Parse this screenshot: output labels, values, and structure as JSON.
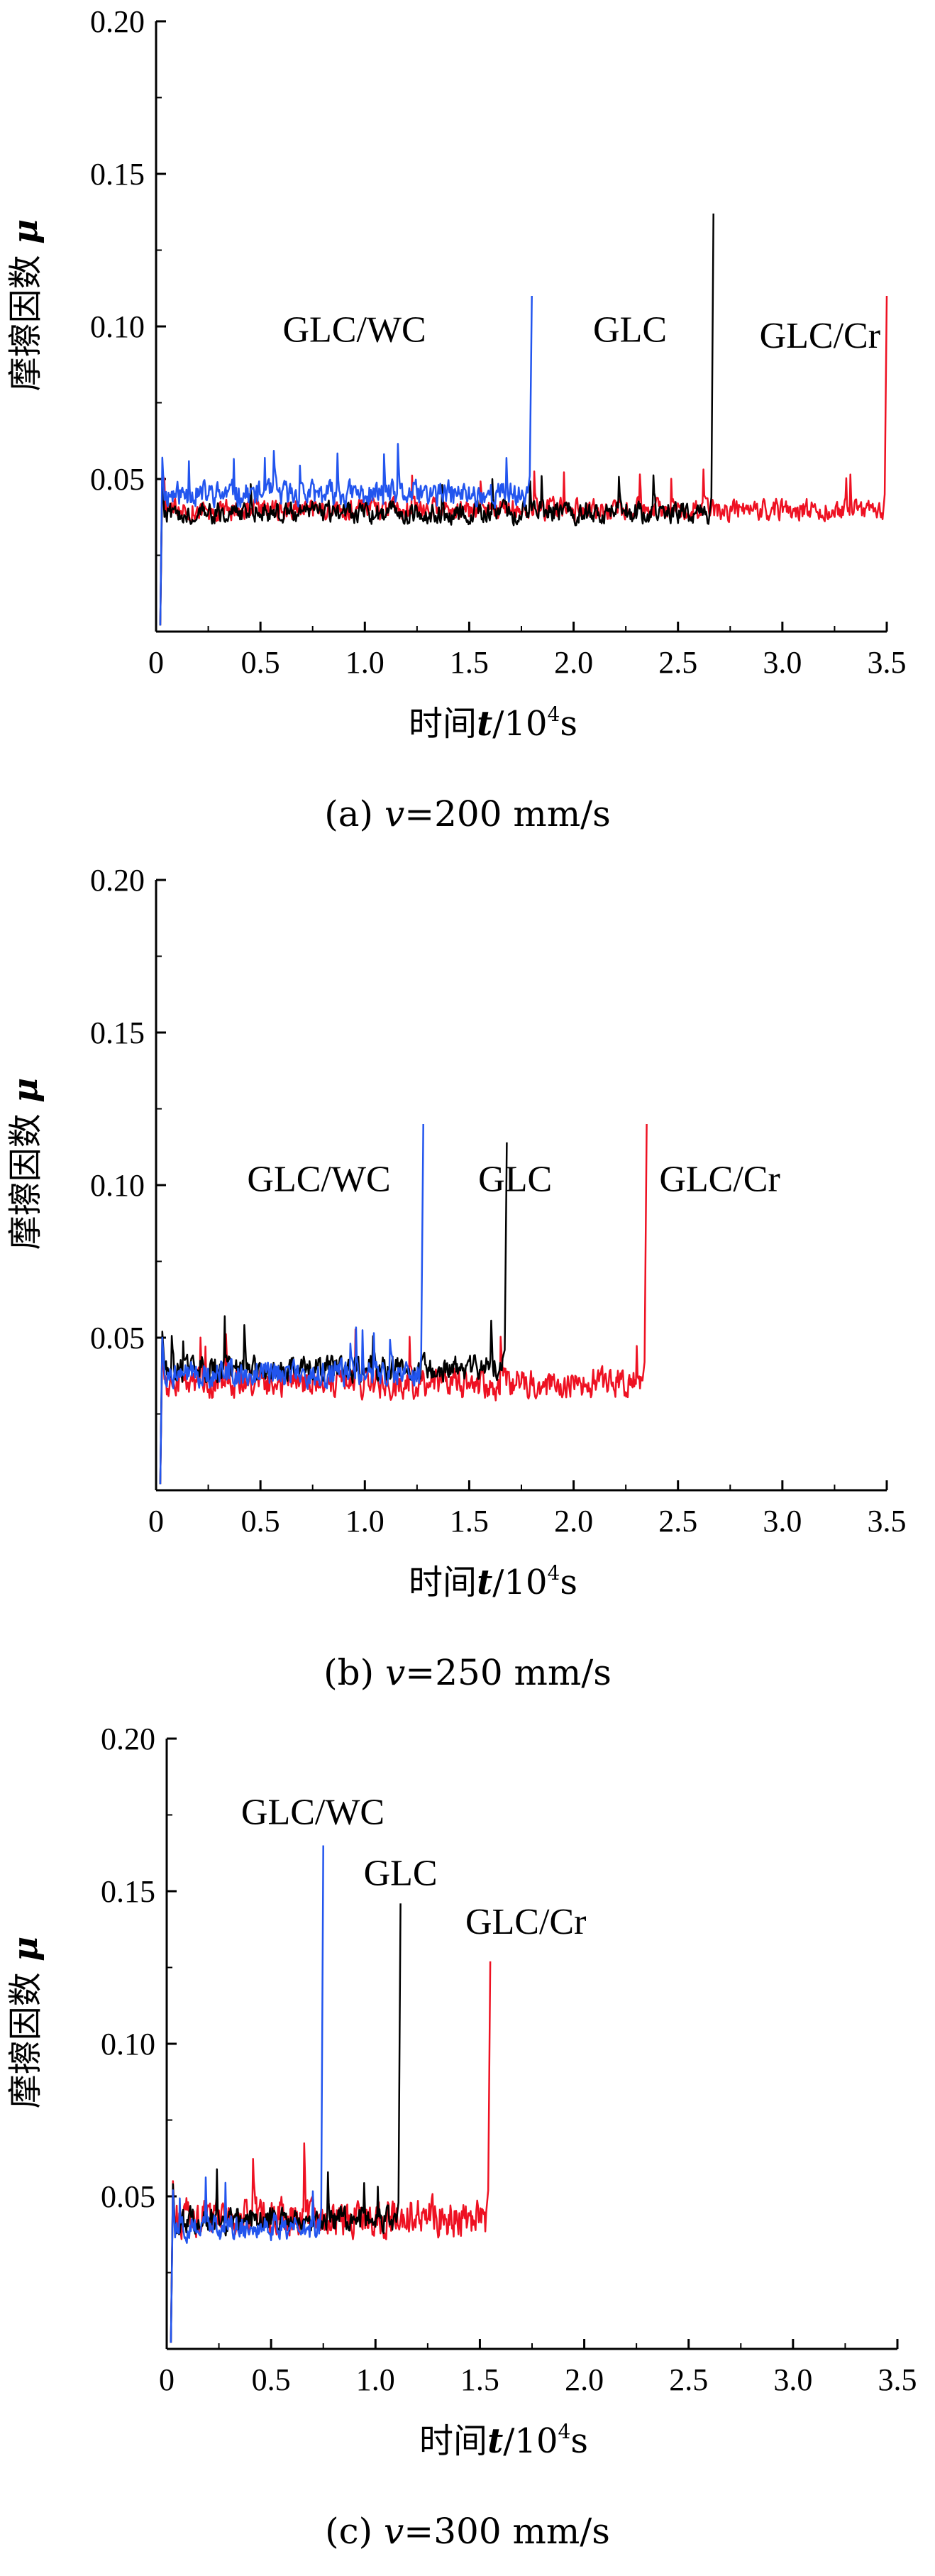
{
  "colors": {
    "GLC/WC": "#2255ee",
    "GLC": "#000000",
    "GLC/Cr": "#ee1122"
  },
  "chart_data": [
    {
      "type": "line",
      "caption_prefix": "(a) ",
      "caption_var": "v",
      "caption_value": "=200 mm/s",
      "xlabel_prefix": "时间",
      "xlabel_var": "t",
      "xlabel_unit": "/10",
      "xlabel_exp": "4",
      "xlabel_suffix": "s",
      "ylabel_text": "摩擦因数 ",
      "ylabel_var": "μ",
      "xlim": [
        0,
        3.5
      ],
      "ylim": [
        0,
        0.2
      ],
      "x_ticks": [
        "0",
        "0.5",
        "1.0",
        "1.5",
        "2.0",
        "2.5",
        "3.0",
        "3.5"
      ],
      "y_ticks": [
        "0.05",
        "0.10",
        "0.15",
        "0.20"
      ],
      "series": [
        {
          "name": "GLC/WC",
          "color": "#2255ee",
          "end_x": 1.8,
          "level": 0.045,
          "noise": 0.006,
          "peak": 0.11,
          "label_x": 0.95,
          "label_y": 0.095
        },
        {
          "name": "GLC",
          "color": "#000000",
          "end_x": 2.67,
          "level": 0.039,
          "noise": 0.005,
          "peak": 0.137,
          "label_x": 2.27,
          "label_y": 0.095
        },
        {
          "name": "GLC/Cr",
          "color": "#ee1122",
          "end_x": 3.5,
          "level": 0.04,
          "noise": 0.005,
          "peak": 0.11,
          "label_x": 3.18,
          "label_y": 0.093
        }
      ]
    },
    {
      "type": "line",
      "caption_prefix": "(b) ",
      "caption_var": "v",
      "caption_value": "=250 mm/s",
      "xlabel_prefix": "时间",
      "xlabel_var": "t",
      "xlabel_unit": "/10",
      "xlabel_exp": "4",
      "xlabel_suffix": "s",
      "ylabel_text": "摩擦因数 ",
      "ylabel_var": "μ",
      "xlim": [
        0,
        3.5
      ],
      "ylim": [
        0,
        0.2
      ],
      "x_ticks": [
        "0",
        "0.5",
        "1.0",
        "1.5",
        "2.0",
        "2.5",
        "3.0",
        "3.5"
      ],
      "y_ticks": [
        "0.05",
        "0.10",
        "0.15",
        "0.20"
      ],
      "series": [
        {
          "name": "GLC/WC",
          "color": "#2255ee",
          "end_x": 1.28,
          "level": 0.038,
          "noise": 0.006,
          "peak": 0.12,
          "label_x": 0.78,
          "label_y": 0.098
        },
        {
          "name": "GLC",
          "color": "#000000",
          "end_x": 1.68,
          "level": 0.04,
          "noise": 0.006,
          "peak": 0.114,
          "label_x": 1.72,
          "label_y": 0.098
        },
        {
          "name": "GLC/Cr",
          "color": "#ee1122",
          "end_x": 2.35,
          "level": 0.035,
          "noise": 0.007,
          "peak": 0.12,
          "label_x": 2.7,
          "label_y": 0.098
        }
      ]
    },
    {
      "type": "line",
      "caption_prefix": "(c) ",
      "caption_var": "v",
      "caption_value": "=300 mm/s",
      "xlabel_prefix": "时间",
      "xlabel_var": "t",
      "xlabel_unit": "/10",
      "xlabel_exp": "4",
      "xlabel_suffix": "s",
      "ylabel_text": "摩擦因数 ",
      "ylabel_var": "μ",
      "xlim": [
        0,
        3.5
      ],
      "ylim": [
        0,
        0.2
      ],
      "x_ticks": [
        "0",
        "0.5",
        "1.0",
        "1.5",
        "2.0",
        "2.5",
        "3.0",
        "3.5"
      ],
      "y_ticks": [
        "0.05",
        "0.10",
        "0.15",
        "0.20"
      ],
      "series": [
        {
          "name": "GLC/WC",
          "color": "#2255ee",
          "end_x": 0.75,
          "level": 0.04,
          "noise": 0.006,
          "peak": 0.165,
          "label_x": 0.7,
          "label_y": 0.172
        },
        {
          "name": "GLC",
          "color": "#000000",
          "end_x": 1.12,
          "level": 0.042,
          "noise": 0.006,
          "peak": 0.146,
          "label_x": 1.12,
          "label_y": 0.152
        },
        {
          "name": "GLC/Cr",
          "color": "#ee1122",
          "end_x": 1.55,
          "level": 0.043,
          "noise": 0.009,
          "peak": 0.127,
          "label_x": 1.72,
          "label_y": 0.136
        }
      ]
    }
  ]
}
